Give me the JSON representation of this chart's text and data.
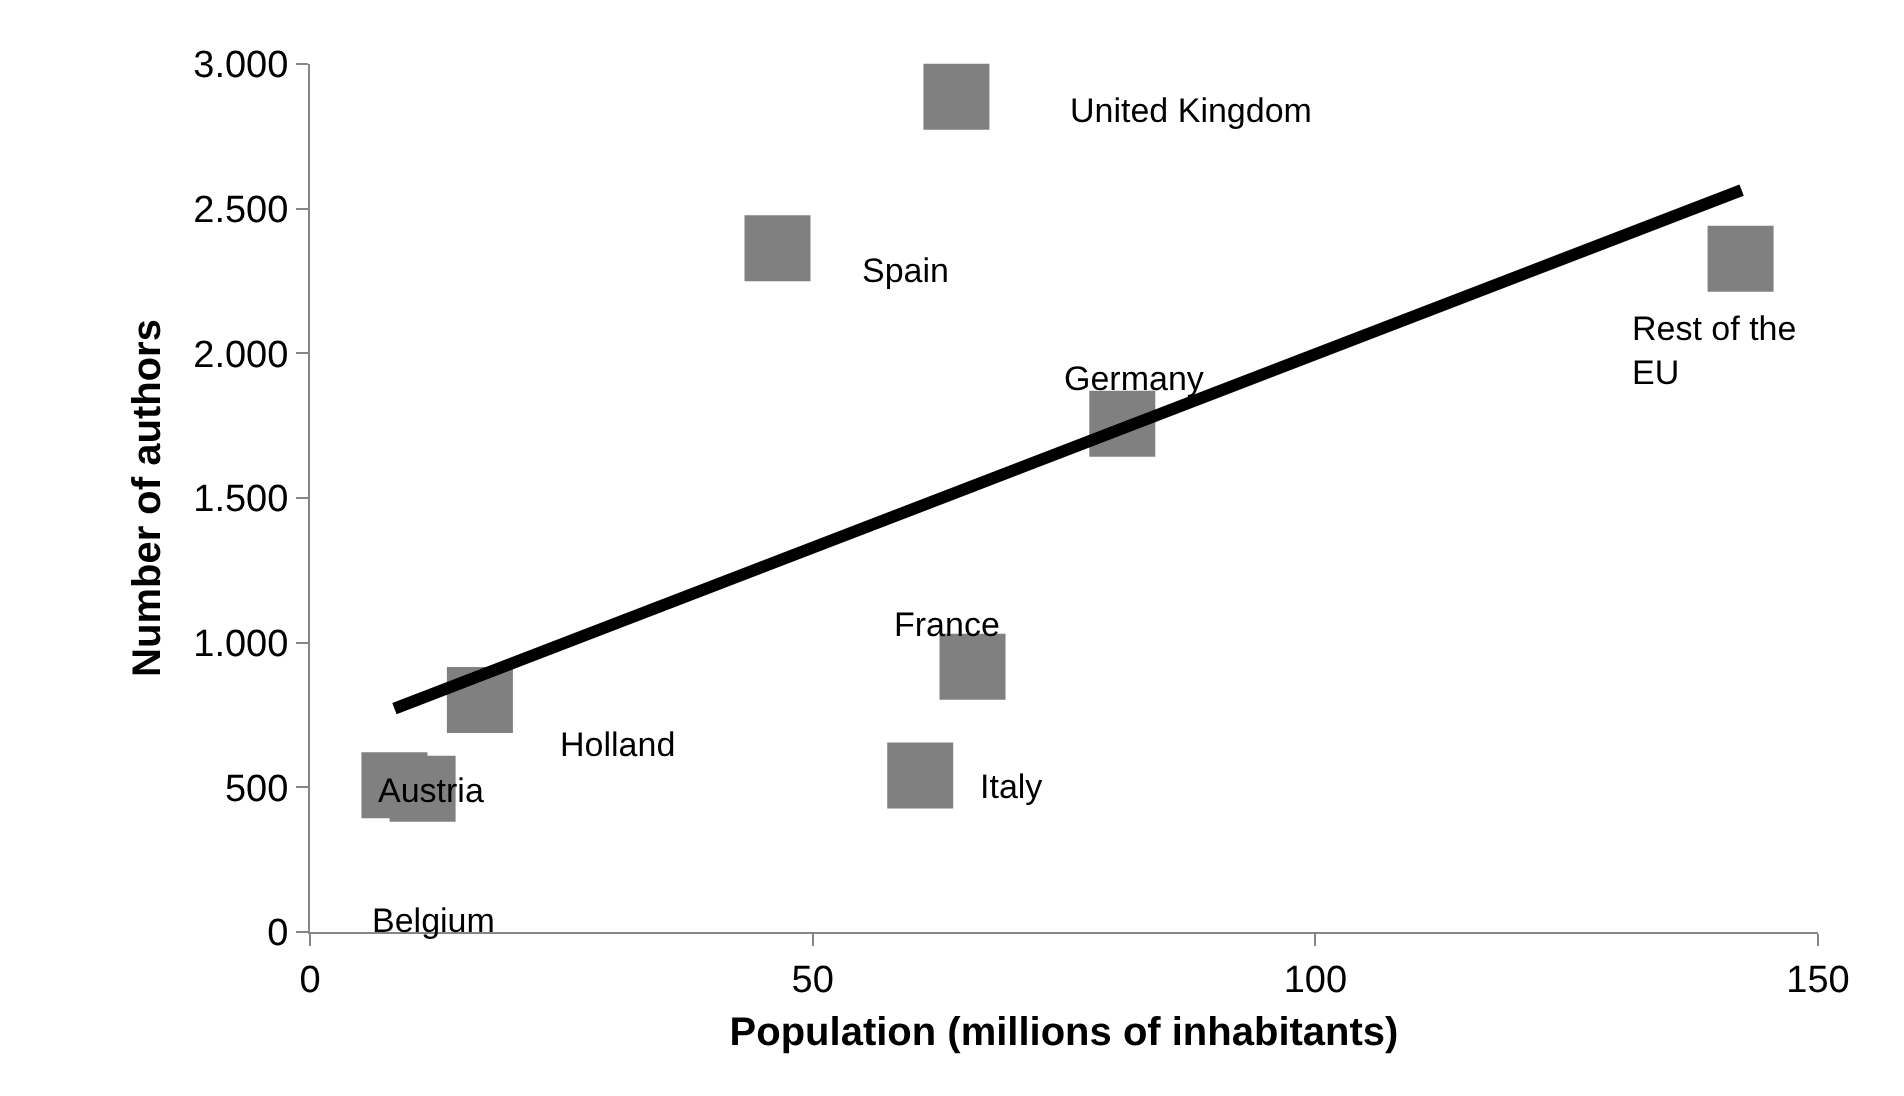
{
  "chart_data": {
    "type": "scatter",
    "xlabel": "Population (millions of inhabitants)",
    "ylabel": "Number of authors",
    "xlim": [
      0,
      150
    ],
    "xticks": [
      0,
      50,
      100,
      150
    ],
    "ylim": [
      0,
      3000
    ],
    "yticks": [
      {
        "value": 0,
        "label": "0"
      },
      {
        "value": 500,
        "label": "500"
      },
      {
        "value": 1000,
        "label": "1.000"
      },
      {
        "value": 1500,
        "label": "1.500"
      },
      {
        "value": 2000,
        "label": "2.000"
      },
      {
        "value": 2500,
        "label": "2.500"
      },
      {
        "value": 3000,
        "label": "3.000"
      }
    ],
    "legend": false,
    "series": [
      {
        "marker": "square",
        "color": "#808080",
        "x": [
          64.3,
          46.5,
          80.8,
          142.3,
          65.9,
          60.7,
          16.9,
          8.4,
          11.2
        ],
        "values": [
          2887,
          2363,
          1757,
          2327,
          917,
          541,
          802,
          507,
          495
        ]
      },
      {
        "type": "line",
        "marker": "none",
        "color": "#000000",
        "line_style": "solid",
        "x": [
          8.4,
          142.4
        ],
        "values": [
          772,
          2564
        ]
      }
    ],
    "annotations": [
      "United Kingdom",
      {
        "text": "Spain",
        "x": 46.5,
        "y": 2363
      },
      {
        "text": "Germany",
        "x": 80.8,
        "y": 1757
      },
      {
        "text": "Rest of the\nEU",
        "x": 142.3,
        "y": 2327
      },
      {
        "text": "France",
        "x": 65.9,
        "y": 917
      },
      {
        "text": "Holland",
        "x": 16.9,
        "y": 802
      },
      {
        "text": "Italy",
        "x": 60.7,
        "y": 541
      },
      {
        "text": "Austria",
        "x": 8.4,
        "y": 507
      },
      "Belgium"
    ]
  }
}
